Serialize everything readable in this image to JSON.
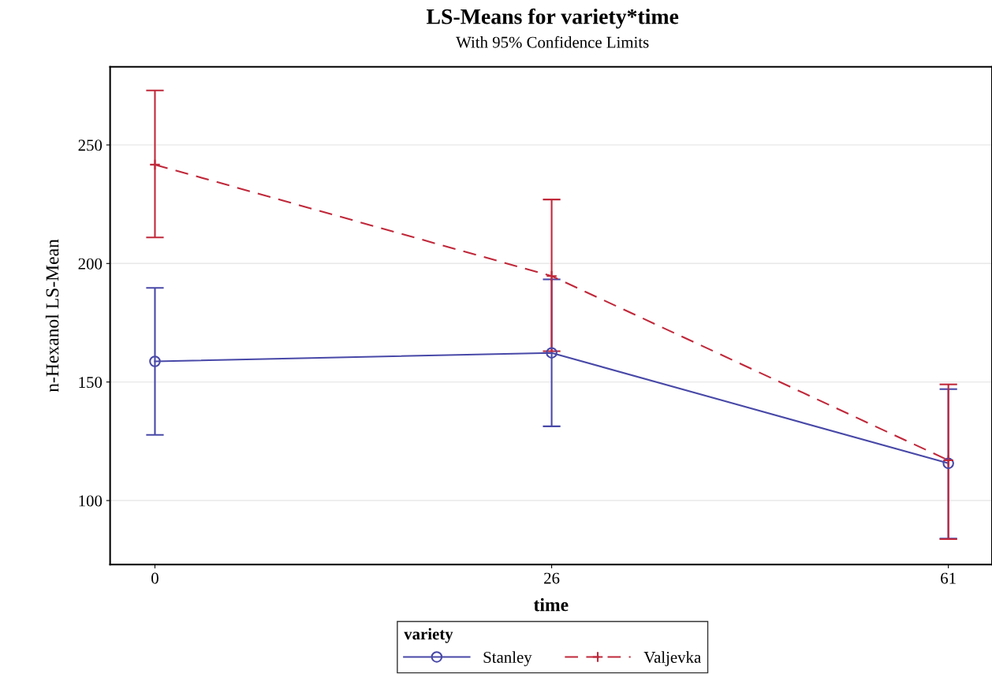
{
  "chart_data": {
    "type": "line",
    "title": "LS-Means for variety*time",
    "subtitle": "With 95% Confidence Limits",
    "xlabel": "time",
    "ylabel": "n-Hexanol LS-Mean",
    "legend_title": "variety",
    "categories": [
      "0",
      "26",
      "61"
    ],
    "series": [
      {
        "name": "Stanley",
        "color": "#4848a8",
        "values": [
          158.7,
          162.3,
          115.7
        ],
        "errors": [
          [
            127.7,
            189.7
          ],
          [
            131.3,
            193.3
          ],
          [
            84,
            147
          ]
        ],
        "marker": "circle",
        "line_style": "solid"
      },
      {
        "name": "Valjevka",
        "color": "#c0283a",
        "values": [
          241.7,
          194.7,
          117
        ],
        "errors": [
          [
            211,
            273
          ],
          [
            163,
            227
          ],
          [
            83.7,
            149
          ]
        ],
        "marker": "cross",
        "line_style": "dashed"
      }
    ],
    "ylim": [
      73,
      283
    ],
    "yticks": [
      100,
      150,
      200,
      250
    ],
    "grid": "y",
    "legend": "bottom"
  }
}
